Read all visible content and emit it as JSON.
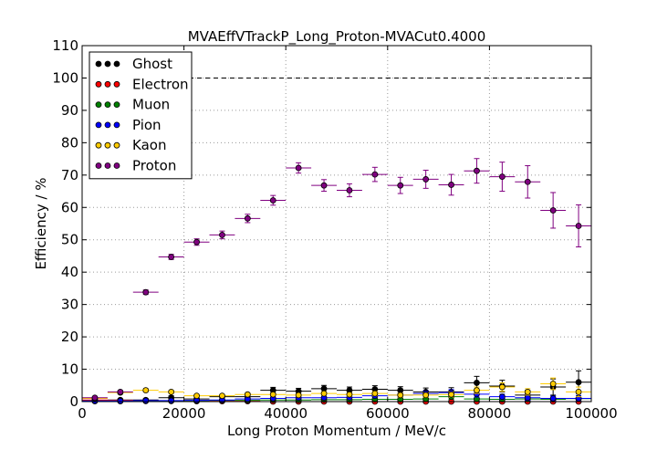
{
  "chart_data": {
    "type": "scatter",
    "title": "MVAEffVTrackP_Long_Proton-MVACut0.4000",
    "xlabel": "Long Proton Momentum / MeV/c",
    "ylabel": "Efficiency / %",
    "xlim": [
      0,
      100000
    ],
    "ylim": [
      0,
      110
    ],
    "xticks": [
      0,
      20000,
      40000,
      60000,
      80000,
      100000
    ],
    "xtick_labels": [
      "0",
      "20000",
      "40000",
      "60000",
      "80000",
      "100000"
    ],
    "yticks": [
      0,
      10,
      20,
      30,
      40,
      50,
      60,
      70,
      80,
      90,
      100,
      110
    ],
    "ytick_labels": [
      "0",
      "10",
      "20",
      "30",
      "40",
      "50",
      "60",
      "70",
      "80",
      "90",
      "100",
      "110"
    ],
    "grid": true,
    "reference_line": 100,
    "legend_position": "top-left",
    "bin_half_width": 2500,
    "x": [
      2500,
      7500,
      12500,
      17500,
      22500,
      27500,
      32500,
      37500,
      42500,
      47500,
      52500,
      57500,
      62500,
      67500,
      72500,
      77500,
      82500,
      87500,
      92500,
      97500
    ],
    "series": [
      {
        "name": "Ghost",
        "color": "#000000",
        "values": [
          0.3,
          0.5,
          0.5,
          1.2,
          0.8,
          1.5,
          1.5,
          3.5,
          3.2,
          4.0,
          3.5,
          3.8,
          3.5,
          3.0,
          3.0,
          5.8,
          4.8,
          2.0,
          4.5,
          6.0
        ],
        "errors": [
          0.3,
          0.3,
          0.4,
          0.6,
          0.5,
          0.6,
          0.7,
          0.9,
          0.9,
          1.0,
          1.0,
          1.1,
          1.1,
          1.2,
          1.3,
          2.0,
          1.8,
          1.5,
          2.5,
          3.5
        ]
      },
      {
        "name": "Electron",
        "color": "#ff0000",
        "values": [
          0.5,
          0.4,
          0.2,
          0.2,
          0.1,
          0.1,
          0.1,
          0.0,
          0.0,
          0.0,
          0.0,
          0.0,
          0.0,
          0.0,
          0.0,
          0.0,
          0.0,
          0.0,
          0.0,
          0.0
        ],
        "errors": [
          0.3,
          0.3,
          0.2,
          0.2,
          0.1,
          0.1,
          0.1,
          0.0,
          0.0,
          0.0,
          0.0,
          0.0,
          0.0,
          0.0,
          0.0,
          0.0,
          0.0,
          0.0,
          0.0,
          0.0
        ]
      },
      {
        "name": "Muon",
        "color": "#008000",
        "values": [
          0.1,
          0.1,
          0.2,
          0.2,
          0.3,
          0.4,
          0.4,
          0.5,
          0.5,
          0.6,
          0.6,
          0.7,
          0.7,
          0.8,
          1.5,
          0.8,
          0.7,
          0.8,
          0.7,
          0.9
        ],
        "errors": [
          0.1,
          0.1,
          0.1,
          0.2,
          0.2,
          0.2,
          0.3,
          0.3,
          0.3,
          0.4,
          0.4,
          0.4,
          0.5,
          0.5,
          0.8,
          0.6,
          0.6,
          0.7,
          0.7,
          0.8
        ]
      },
      {
        "name": "Pion",
        "color": "#0000ff",
        "values": [
          0.2,
          0.2,
          0.3,
          0.3,
          0.4,
          0.5,
          0.8,
          1.0,
          1.2,
          1.2,
          1.3,
          1.8,
          2.0,
          2.5,
          2.8,
          2.3,
          1.5,
          1.2,
          1.0,
          1.0
        ],
        "errors": [
          0.1,
          0.2,
          0.2,
          0.2,
          0.3,
          0.3,
          0.4,
          0.4,
          0.5,
          0.5,
          0.5,
          0.6,
          0.7,
          0.8,
          0.9,
          0.9,
          0.8,
          0.8,
          0.8,
          0.9
        ]
      },
      {
        "name": "Kaon",
        "color": "#ffcc00",
        "values": [
          1.0,
          2.8,
          3.5,
          3.0,
          1.8,
          1.8,
          2.2,
          2.2,
          2.0,
          2.5,
          2.2,
          2.5,
          2.0,
          2.0,
          2.2,
          3.5,
          4.5,
          3.0,
          5.5,
          3.0
        ],
        "errors": [
          0.3,
          0.5,
          0.5,
          0.5,
          0.4,
          0.4,
          0.5,
          0.5,
          0.5,
          0.6,
          0.6,
          0.7,
          0.7,
          0.7,
          0.8,
          1.0,
          1.3,
          1.0,
          1.8,
          1.5
        ]
      },
      {
        "name": "Proton",
        "color": "#800080",
        "values": [
          1.2,
          3.0,
          33.8,
          44.7,
          49.3,
          51.5,
          56.6,
          62.2,
          72.2,
          66.8,
          65.3,
          70.2,
          66.8,
          68.7,
          67.0,
          71.3,
          69.5,
          67.9,
          59.1,
          54.3
        ],
        "errors": [
          0.3,
          0.4,
          0.7,
          0.8,
          1.0,
          1.2,
          1.3,
          1.5,
          1.6,
          1.8,
          2.0,
          2.2,
          2.5,
          2.8,
          3.2,
          3.8,
          4.5,
          5.0,
          5.5,
          6.5
        ]
      }
    ]
  }
}
